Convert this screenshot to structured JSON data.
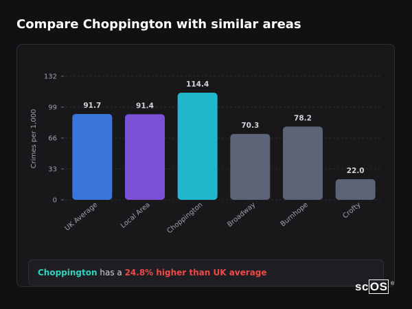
{
  "page": {
    "title": "Compare Choppington with similar areas"
  },
  "chart_data": {
    "type": "bar",
    "title": "",
    "ylabel": "Crimes per 1,000",
    "xlabel": "",
    "ylim": [
      0,
      132
    ],
    "yticks": [
      0,
      33,
      66,
      99,
      132
    ],
    "grid": true,
    "categories": [
      "UK Average",
      "Local Area",
      "Choppington",
      "Broadway",
      "Burnhope",
      "Crofty"
    ],
    "values": [
      91.7,
      91.4,
      114.4,
      70.3,
      78.2,
      22.0
    ],
    "value_labels": [
      "91.7",
      "91.4",
      "114.4",
      "70.3",
      "78.2",
      "22.0"
    ],
    "colors": [
      "#3b74db",
      "#7b4fd6",
      "#1fb8cd",
      "#5c6577",
      "#5c6577",
      "#5c6577"
    ]
  },
  "summary": {
    "area": "Choppington",
    "middle": " has a ",
    "comparison": "24.8% higher than UK average"
  },
  "logo": {
    "prefix": "sc",
    "boxed": "OS",
    "mark": "®"
  }
}
